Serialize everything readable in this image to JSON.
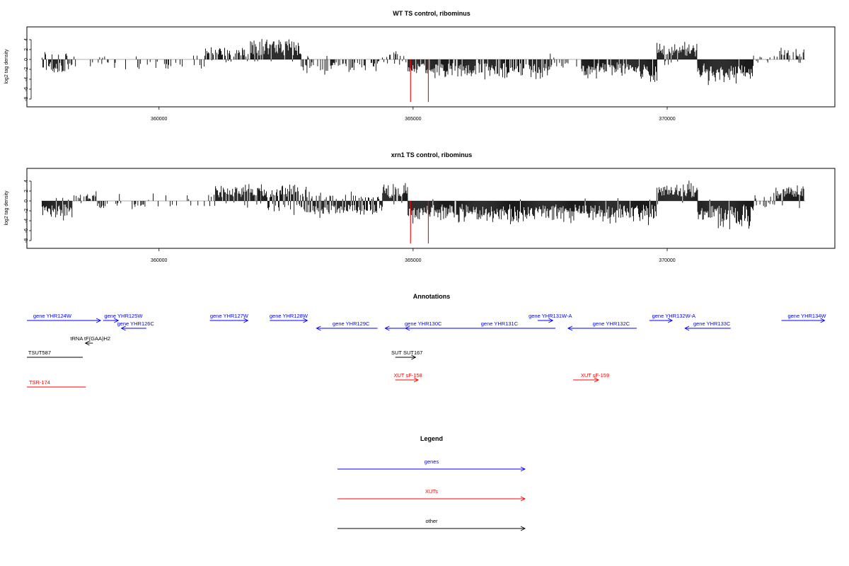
{
  "colors": {
    "genes": "#0000ff",
    "xuts": "#ff0000",
    "other": "#000000",
    "signal": "#000000",
    "baseline": "#999999"
  },
  "chart_data": [
    {
      "type": "bar",
      "title": "WT TS control, ribominus",
      "ylabel": "log2 tag density",
      "xlim": [
        357400,
        373300
      ],
      "ylim": [
        -9,
        6
      ],
      "yticks": [
        4,
        2,
        0,
        -2,
        -4,
        -6,
        -8
      ],
      "xticks": [
        360000,
        365000,
        370000
      ],
      "xtick_labels": [
        "360000",
        "365000",
        "370000"
      ],
      "grid": false,
      "segments": [
        [
          357700,
          358300,
          0.15,
          0.6,
          1.2,
          2.0,
          0.0,
          0.3
        ],
        [
          358300,
          359300,
          0.05,
          0.1,
          1.0,
          1.5,
          0.0,
          0.3
        ],
        [
          359300,
          359700,
          0.1,
          0.1,
          1.0,
          2.0,
          0.0,
          0.3
        ],
        [
          359700,
          360900,
          0.03,
          0.2,
          1.0,
          1.5,
          0.0,
          0.2
        ],
        [
          360900,
          361800,
          0.6,
          0.05,
          2.0,
          0.5,
          0.0,
          0.3
        ],
        [
          361800,
          362800,
          0.9,
          0.05,
          3.2,
          0.5,
          0.0,
          0.4
        ],
        [
          362800,
          363500,
          0.05,
          0.5,
          0.8,
          2.0,
          0.0,
          0.3
        ],
        [
          363500,
          364300,
          0.0,
          0.45,
          0.5,
          2.0,
          0.0,
          0.3
        ],
        [
          364300,
          364900,
          0.15,
          0.1,
          1.5,
          1.0,
          0.0,
          0.4
        ],
        [
          364900,
          367700,
          0.0,
          0.8,
          0.5,
          3.0,
          0.0,
          0.4
        ],
        [
          367700,
          368300,
          0.08,
          0.2,
          0.8,
          1.5,
          0.0,
          0.3
        ],
        [
          368300,
          369800,
          0.0,
          0.9,
          0.5,
          3.2,
          0.0,
          0.4
        ],
        [
          369800,
          370600,
          0.9,
          0.05,
          2.6,
          1.0,
          0.0,
          0.4
        ],
        [
          370600,
          371700,
          0.0,
          0.95,
          0.5,
          3.6,
          0.0,
          0.4
        ],
        [
          371700,
          372200,
          0.2,
          0.05,
          0.8,
          0.5,
          0.0,
          0.3
        ],
        [
          372200,
          372700,
          0.55,
          0.1,
          1.6,
          1.0,
          0.0,
          0.3
        ]
      ],
      "markers": [
        {
          "x": 364950,
          "value": -8.6
        },
        {
          "x": 365300,
          "value": -8.6
        }
      ]
    },
    {
      "type": "bar",
      "title": "xrn1 TS control, ribominus",
      "ylabel": "log2 tag density",
      "xlim": [
        357400,
        373300
      ],
      "ylim": [
        -9,
        6
      ],
      "yticks": [
        4,
        2,
        0,
        -2,
        -4,
        -6,
        -8
      ],
      "xticks": [
        360000,
        365000,
        370000
      ],
      "xtick_labels": [
        "360000",
        "365000",
        "370000"
      ],
      "grid": false,
      "segments": [
        [
          357700,
          358300,
          0.1,
          0.95,
          0.8,
          2.6,
          0.0,
          0.4
        ],
        [
          358300,
          358800,
          0.3,
          0.1,
          1.4,
          0.8,
          0.0,
          0.3
        ],
        [
          358800,
          359800,
          0.02,
          0.3,
          1.0,
          1.5,
          0.0,
          0.3
        ],
        [
          359800,
          360500,
          0.05,
          0.1,
          1.5,
          1.0,
          0.0,
          0.3
        ],
        [
          360500,
          361000,
          0.05,
          0.05,
          1.0,
          1.0,
          0.0,
          0.3
        ],
        [
          361000,
          362000,
          0.8,
          0.1,
          2.5,
          1.2,
          0.0,
          0.4
        ],
        [
          362000,
          362900,
          0.8,
          0.4,
          2.6,
          2.0,
          0.0,
          0.4
        ],
        [
          362900,
          364400,
          0.3,
          0.7,
          1.5,
          2.4,
          0.0,
          0.4
        ],
        [
          364400,
          364900,
          0.9,
          0.05,
          2.6,
          0.8,
          0.0,
          0.4
        ],
        [
          364900,
          368400,
          0.02,
          0.97,
          0.5,
          3.2,
          0.0,
          0.4
        ],
        [
          368400,
          369800,
          0.02,
          0.95,
          0.5,
          3.3,
          0.0,
          0.4
        ],
        [
          369800,
          370600,
          0.95,
          0.05,
          2.7,
          0.8,
          0.0,
          0.4
        ],
        [
          370600,
          371700,
          0.02,
          0.97,
          0.5,
          3.8,
          0.0,
          0.4
        ],
        [
          371700,
          372100,
          0.2,
          0.3,
          1.0,
          1.0,
          0.0,
          0.3
        ],
        [
          372100,
          372700,
          0.85,
          0.1,
          2.2,
          1.0,
          0.0,
          0.4
        ]
      ],
      "markers": [
        {
          "x": 364950,
          "value": -8.6
        },
        {
          "x": 365300,
          "value": -8.6
        }
      ]
    }
  ],
  "annotations": {
    "title": "Annotations",
    "features": [
      {
        "label": "gene YHR124W",
        "class": "genes",
        "start": 357400,
        "end": 358850,
        "dir": "right",
        "row": 0,
        "labelpos": 357900
      },
      {
        "label": "gene YHR125W",
        "class": "genes",
        "start": 358900,
        "end": 359200,
        "dir": "right",
        "row": 0,
        "labelpos": 359300
      },
      {
        "label": "gene YHR126C",
        "class": "genes",
        "start": 359260,
        "end": 359750,
        "dir": "left",
        "row": 1,
        "labelpos": 359540
      },
      {
        "label": "gene YHR127W",
        "class": "genes",
        "start": 361000,
        "end": 361750,
        "dir": "right",
        "row": 0,
        "labelpos": 361380
      },
      {
        "label": "gene YHR128W",
        "class": "genes",
        "start": 362180,
        "end": 362920,
        "dir": "right",
        "row": 0,
        "labelpos": 362550
      },
      {
        "label": "gene YHR129C",
        "class": "genes",
        "start": 363100,
        "end": 364300,
        "dir": "left",
        "row": 1,
        "labelpos": 363780
      },
      {
        "label": "gene YHR130C",
        "class": "genes",
        "start": 364450,
        "end": 365500,
        "dir": "left",
        "row": 1,
        "labelpos": 365200
      },
      {
        "label": "gene YHR131C",
        "class": "genes",
        "start": 364850,
        "end": 367800,
        "dir": "left",
        "row": 1,
        "labelpos": 366700
      },
      {
        "label": "gene YHR131W-A",
        "class": "genes",
        "start": 367450,
        "end": 367750,
        "dir": "right",
        "row": 0,
        "labelpos": 367700
      },
      {
        "label": "gene YHR132C",
        "class": "genes",
        "start": 368050,
        "end": 369400,
        "dir": "left",
        "row": 1,
        "labelpos": 368900
      },
      {
        "label": "gene YHR132W-A",
        "class": "genes",
        "start": 369650,
        "end": 370100,
        "dir": "right",
        "row": 0,
        "labelpos": 370130
      },
      {
        "label": "gene YHR133C",
        "class": "genes",
        "start": 370350,
        "end": 371250,
        "dir": "left",
        "row": 1,
        "labelpos": 370880
      },
      {
        "label": "gene YHR134W",
        "class": "genes",
        "start": 372250,
        "end": 373100,
        "dir": "right",
        "row": 0,
        "labelpos": 372750
      },
      {
        "label": "tRNA tF(GAA)H2",
        "class": "other",
        "start": 358550,
        "end": 358700,
        "dir": "left",
        "row": 2,
        "labelpos": 358650
      },
      {
        "label": "TSUT587",
        "class": "other",
        "start": 357400,
        "end": 358500,
        "dir": "none",
        "row": 3,
        "labelpos": 357650
      },
      {
        "label": "SUT SUT167",
        "class": "other",
        "start": 364650,
        "end": 365050,
        "dir": "right",
        "row": 3,
        "labelpos": 364880
      },
      {
        "label": "TSR-174",
        "class": "xuts",
        "start": 357400,
        "end": 358560,
        "dir": "none",
        "row": 5,
        "labelpos": 357650
      },
      {
        "label": "XUT sF-158",
        "class": "xuts",
        "start": 364650,
        "end": 365100,
        "dir": "right",
        "row": 4,
        "labelpos": 364900
      },
      {
        "label": "XUT sF-159",
        "class": "xuts",
        "start": 368150,
        "end": 368650,
        "dir": "right",
        "row": 4,
        "labelpos": 368580
      }
    ]
  },
  "legend": {
    "title": "Legend",
    "items": [
      {
        "label": "genes",
        "class": "genes"
      },
      {
        "label": "XUTs",
        "class": "xuts"
      },
      {
        "label": "other",
        "class": "other"
      }
    ]
  }
}
